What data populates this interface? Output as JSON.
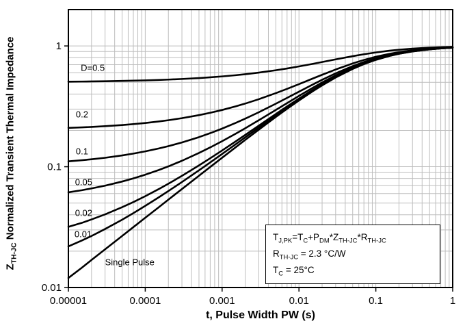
{
  "chart_data": {
    "type": "line",
    "title": "",
    "xlabel": "t, Pulse Width PW (s)",
    "ylabel_segments": [
      {
        "text": "Z"
      },
      {
        "sub": "TH-JC"
      },
      {
        "text": " Normalized Transient Thermal Impedance"
      }
    ],
    "x_scale": "log",
    "y_scale": "log",
    "xlim": [
      1e-05,
      1
    ],
    "ylim": [
      0.01,
      2
    ],
    "grid": true,
    "legend_position": "none",
    "colors": {
      "curve": "#000000",
      "grid": "#bdbdbd",
      "border": "#000000"
    },
    "x_tick_labels": [
      "0.00001",
      "0.0001",
      "0.001",
      "0.01",
      "0.1",
      "1"
    ],
    "x_tick_values": [
      1e-05,
      0.0001,
      0.001,
      0.01,
      0.1,
      1
    ],
    "y_tick_labels": [
      "1",
      "0.1",
      "0.01"
    ],
    "y_tick_values": [
      1,
      0.1,
      0.01
    ],
    "x": [
      1e-05,
      1.5e-05,
      2e-05,
      3e-05,
      5e-05,
      7e-05,
      0.0001,
      0.00015,
      0.0002,
      0.0003,
      0.0005,
      0.0007,
      0.001,
      0.0015,
      0.002,
      0.003,
      0.005,
      0.007,
      0.01,
      0.015,
      0.02,
      0.03,
      0.05,
      0.07,
      0.1,
      0.15,
      0.2,
      0.3,
      0.5,
      0.7,
      1
    ],
    "series": [
      {
        "name": "D=0.5",
        "values": [
          0.506,
          0.5073,
          0.5085,
          0.5104,
          0.5134,
          0.5158,
          0.5189,
          0.5231,
          0.5267,
          0.5327,
          0.5421,
          0.5497,
          0.5593,
          0.5724,
          0.5833,
          0.6014,
          0.6291,
          0.6508,
          0.6768,
          0.71,
          0.7357,
          0.7739,
          0.8228,
          0.8536,
          0.8835,
          0.9129,
          0.9303,
          0.9502,
          0.9683,
          0.9767,
          0.9834
        ]
      },
      {
        "name": "0.2",
        "values": [
          0.2096,
          0.2117,
          0.2135,
          0.2166,
          0.2214,
          0.2253,
          0.2302,
          0.237,
          0.2427,
          0.2523,
          0.2674,
          0.2796,
          0.2949,
          0.3159,
          0.3333,
          0.3622,
          0.4066,
          0.4412,
          0.4828,
          0.5361,
          0.5771,
          0.6382,
          0.7164,
          0.7657,
          0.8136,
          0.8606,
          0.8885,
          0.9204,
          0.9493,
          0.9628,
          0.9734
        ]
      },
      {
        "name": "0.1",
        "values": [
          0.1108,
          0.1132,
          0.1152,
          0.1186,
          0.124,
          0.1284,
          0.134,
          0.1416,
          0.148,
          0.1588,
          0.1758,
          0.1896,
          0.2068,
          0.2304,
          0.25,
          0.2824,
          0.3324,
          0.3714,
          0.4182,
          0.4781,
          0.5243,
          0.593,
          0.681,
          0.7364,
          0.7903,
          0.8431,
          0.8746,
          0.9104,
          0.9429,
          0.9581,
          0.9701
        ]
      },
      {
        "name": "0.05",
        "values": [
          0.0614,
          0.0639,
          0.0661,
          0.0697,
          0.0754,
          0.08,
          0.0859,
          0.0939,
          0.1007,
          0.112,
          0.13,
          0.1445,
          0.1627,
          0.1876,
          0.2083,
          0.2426,
          0.2953,
          0.3364,
          0.3859,
          0.4491,
          0.4978,
          0.5703,
          0.6632,
          0.7218,
          0.7786,
          0.8344,
          0.8677,
          0.9055,
          0.9398,
          0.9558,
          0.9684
        ]
      },
      {
        "name": "0.02",
        "values": [
          0.0318,
          0.0343,
          0.0366,
          0.0403,
          0.0462,
          0.051,
          0.057,
          0.0653,
          0.0723,
          0.084,
          0.1025,
          0.1175,
          0.1363,
          0.1619,
          0.1833,
          0.2187,
          0.273,
          0.3155,
          0.3665,
          0.4317,
          0.482,
          0.5568,
          0.6526,
          0.713,
          0.7717,
          0.8292,
          0.8635,
          0.9025,
          0.9379,
          0.9544,
          0.9674
        ]
      },
      {
        "name": "0.01",
        "values": [
          0.0219,
          0.0245,
          0.0267,
          0.0305,
          0.0364,
          0.0413,
          0.0474,
          0.0558,
          0.0629,
          0.0747,
          0.0934,
          0.1085,
          0.1275,
          0.1534,
          0.175,
          0.2107,
          0.2656,
          0.3085,
          0.36,
          0.4259,
          0.4767,
          0.5522,
          0.649,
          0.71,
          0.7693,
          0.8274,
          0.8621,
          0.9015,
          0.9372,
          0.954,
          0.967
        ]
      },
      {
        "name": "Single Pulse",
        "values": [
          0.012,
          0.0146,
          0.0169,
          0.0207,
          0.0267,
          0.0316,
          0.0378,
          0.0462,
          0.0534,
          0.0653,
          0.0842,
          0.0995,
          0.1187,
          0.1448,
          0.1667,
          0.2027,
          0.2582,
          0.3015,
          0.3536,
          0.4201,
          0.4714,
          0.5477,
          0.6455,
          0.7071,
          0.767,
          0.8257,
          0.8607,
          0.9005,
          0.9366,
          0.9535,
          0.9667
        ]
      }
    ],
    "curve_labels": [
      {
        "text": "D=0.5",
        "x": 1.45e-05,
        "y": 0.66
      },
      {
        "text": "0.2",
        "x": 1.25e-05,
        "y": 0.27
      },
      {
        "text": "0.1",
        "x": 1.25e-05,
        "y": 0.135
      },
      {
        "text": "0.05",
        "x": 1.22e-05,
        "y": 0.075
      },
      {
        "text": "0.02",
        "x": 1.22e-05,
        "y": 0.0415
      },
      {
        "text": "0.01",
        "x": 1.2e-05,
        "y": 0.0278
      },
      {
        "text": "Single Pulse",
        "x": 3e-05,
        "y": 0.0163
      }
    ]
  },
  "annotation": {
    "lines": [
      [
        {
          "text": "T"
        },
        {
          "sub": "J,PK"
        },
        {
          "text": "=T"
        },
        {
          "sub": "C"
        },
        {
          "text": "+P"
        },
        {
          "sub": "DM"
        },
        {
          "text": "*Z"
        },
        {
          "sub": "TH-JC"
        },
        {
          "text": "*R"
        },
        {
          "sub": "TH-JC"
        }
      ],
      [
        {
          "text": "R"
        },
        {
          "sub": "TH-JC"
        },
        {
          "text": " = 2.3 °C/W"
        }
      ],
      [
        {
          "text": "T"
        },
        {
          "sub": "C"
        },
        {
          "text": " = 25°C"
        }
      ]
    ]
  }
}
